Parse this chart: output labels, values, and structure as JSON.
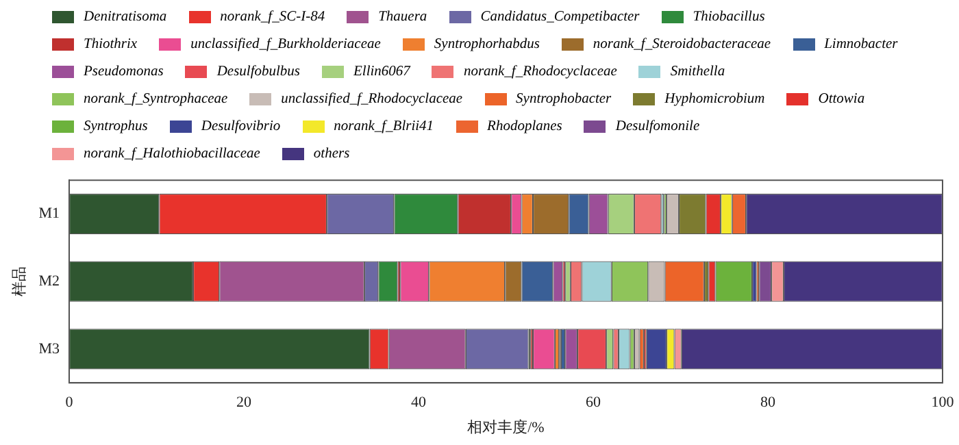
{
  "chart_data": {
    "type": "bar",
    "orientation": "horizontal",
    "stacked": true,
    "xlabel": "相对丰度/%",
    "ylabel": "样品",
    "categories": [
      "M1",
      "M2",
      "M3"
    ],
    "xlim": [
      0,
      100
    ],
    "xticks": [
      0,
      20,
      40,
      60,
      80,
      100
    ],
    "grid": false,
    "legend": "top",
    "series": [
      {
        "name": "Denitratisoma",
        "color": "#2f5630",
        "values": [
          10.3,
          14.2,
          34.4
        ]
      },
      {
        "name": "norank_f_SC-I-84",
        "color": "#e8332c",
        "values": [
          19.2,
          3.0,
          2.2
        ]
      },
      {
        "name": "Thauera",
        "color": "#a0538f",
        "values": [
          0,
          16.6,
          8.8
        ]
      },
      {
        "name": "Candidatus_Competibacter",
        "color": "#6c68a4",
        "values": [
          7.7,
          1.6,
          7.2
        ]
      },
      {
        "name": "Thiobacillus",
        "color": "#2f8a3c",
        "values": [
          7.3,
          2.2,
          0.2
        ]
      },
      {
        "name": "Thiothrix",
        "color": "#c0302e",
        "values": [
          6.1,
          0.3,
          0.3
        ]
      },
      {
        "name": "unclassified_f_Burkholderiaceae",
        "color": "#ea4d92",
        "values": [
          1.2,
          3.3,
          2.5
        ]
      },
      {
        "name": "Syntrophorhabdus",
        "color": "#ef7f30",
        "values": [
          1.3,
          8.7,
          0.5
        ]
      },
      {
        "name": "norank_f_Steroidobacteraceae",
        "color": "#9c6c2c",
        "values": [
          4.1,
          1.9,
          0.2
        ]
      },
      {
        "name": "Limnobacter",
        "color": "#3a5f96",
        "values": [
          2.3,
          3.6,
          0.5
        ]
      },
      {
        "name": "Pseudomonas",
        "color": "#9c4f98",
        "values": [
          2.2,
          1.1,
          1.4
        ]
      },
      {
        "name": "Desulfobulbus",
        "color": "#e84a52",
        "values": [
          0,
          0.3,
          3.3
        ]
      },
      {
        "name": "Ellin6067",
        "color": "#a6d07e",
        "values": [
          3.0,
          0.6,
          0.8
        ]
      },
      {
        "name": "norank_f_Rhodocyclaceae",
        "color": "#ef7373",
        "values": [
          3.1,
          1.3,
          0.6
        ]
      },
      {
        "name": "Smithella",
        "color": "#9ed2d8",
        "values": [
          0.3,
          3.4,
          1.3
        ]
      },
      {
        "name": "norank_f_Syntrophaceae",
        "color": "#8fc45a",
        "values": [
          0.3,
          4.2,
          0.5
        ]
      },
      {
        "name": "unclassified_f_Rhodocyclaceae",
        "color": "#c8bcb6",
        "values": [
          1.4,
          1.9,
          0.6
        ]
      },
      {
        "name": "Syntrophobacter",
        "color": "#ec6429",
        "values": [
          0,
          4.5,
          0.5
        ]
      },
      {
        "name": "Hyphomicrobium",
        "color": "#7d7b30",
        "values": [
          3.1,
          0.5,
          0
        ]
      },
      {
        "name": "Ottowia",
        "color": "#e4312c",
        "values": [
          1.7,
          0.8,
          0.3
        ]
      },
      {
        "name": "Syntrophus",
        "color": "#6cb23c",
        "values": [
          0,
          4.2,
          0
        ]
      },
      {
        "name": "Desulfovibrio",
        "color": "#3c4594",
        "values": [
          0,
          0.5,
          2.3
        ]
      },
      {
        "name": "norank_f_Blrii41",
        "color": "#f3e82a",
        "values": [
          1.3,
          0,
          0.9
        ]
      },
      {
        "name": "Rhodoplanes",
        "color": "#ec6530",
        "values": [
          1.6,
          0.3,
          0
        ]
      },
      {
        "name": "Desulfomonile",
        "color": "#7c4a90",
        "values": [
          0,
          1.4,
          0
        ]
      },
      {
        "name": "norank_f_Halothiobacillaceae",
        "color": "#f39595",
        "values": [
          0,
          1.4,
          0.8
        ]
      },
      {
        "name": "others",
        "color": "#45357f",
        "values": [
          22.5,
          18.2,
          29.9
        ]
      }
    ]
  }
}
